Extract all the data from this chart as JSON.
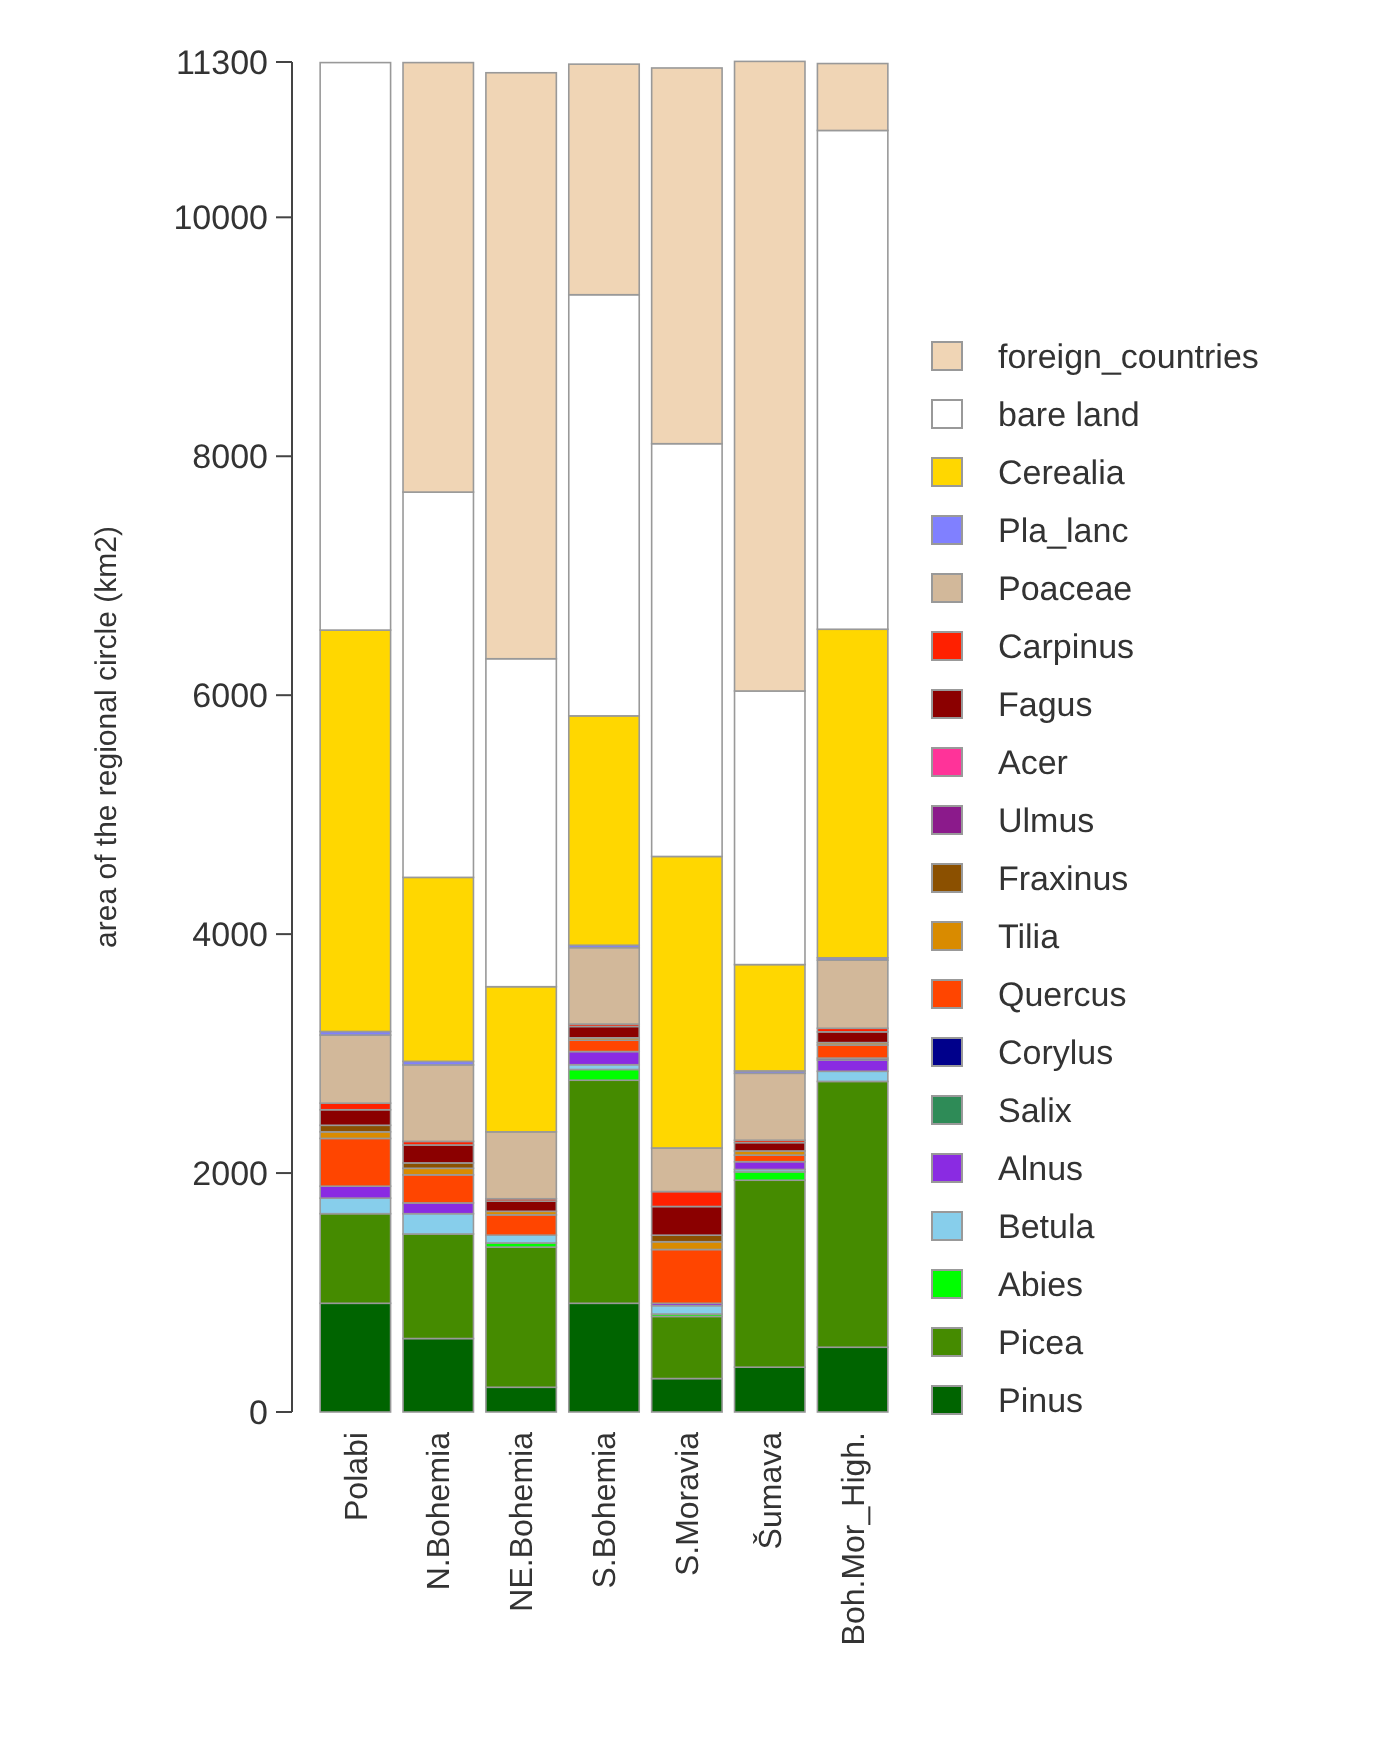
{
  "chart_data": {
    "type": "bar",
    "stacked": true,
    "ylabel": "area of the regional circle (km2)",
    "categories": [
      "Polabi",
      "N.Bohemia",
      "NE.Bohemia",
      "S.Bohemia",
      "S.Moravia",
      "Šumava",
      "Boh.Mor_High."
    ],
    "ylim": [
      0,
      11300
    ],
    "yticks": [
      0,
      2000,
      4000,
      6000,
      8000,
      10000,
      11300
    ],
    "grid": false,
    "legend": "right",
    "series": [
      {
        "name": "Pinus",
        "color": "#006400",
        "values": [
          910,
          615,
          207,
          910,
          280,
          375,
          542
        ]
      },
      {
        "name": "Picea",
        "color": "#458b00",
        "values": [
          750,
          875,
          1173,
          1867,
          520,
          1565,
          2225
        ]
      },
      {
        "name": "Abies",
        "color": "#00ff00",
        "values": [
          0,
          0,
          35,
          90,
          20,
          70,
          0
        ]
      },
      {
        "name": "Betula",
        "color": "#87ceeb",
        "values": [
          130,
          170,
          65,
          40,
          70,
          20,
          85
        ]
      },
      {
        "name": "Alnus",
        "color": "#8a2be2",
        "values": [
          100,
          90,
          0,
          110,
          20,
          65,
          95
        ]
      },
      {
        "name": "Salix",
        "color": "#2e8b57",
        "values": [
          0,
          0,
          0,
          0,
          0,
          0,
          0
        ]
      },
      {
        "name": "Corylus",
        "color": "#00008b",
        "values": [
          0,
          0,
          0,
          0,
          0,
          0,
          15
        ]
      },
      {
        "name": "Quercus",
        "color": "#ff4500",
        "values": [
          400,
          235,
          170,
          95,
          450,
          55,
          110
        ]
      },
      {
        "name": "Tilia",
        "color": "#d98b00",
        "values": [
          55,
          55,
          30,
          20,
          65,
          35,
          20
        ]
      },
      {
        "name": "Fraxinus",
        "color": "#8b5000",
        "values": [
          55,
          45,
          0,
          0,
          55,
          0,
          0
        ]
      },
      {
        "name": "Ulmus",
        "color": "#8b1a8b",
        "values": [
          0,
          0,
          0,
          0,
          0,
          0,
          0
        ]
      },
      {
        "name": "Acer",
        "color": "#ff3399",
        "values": [
          0,
          0,
          0,
          0,
          0,
          0,
          0
        ]
      },
      {
        "name": "Fagus",
        "color": "#8b0000",
        "values": [
          130,
          150,
          85,
          95,
          240,
          70,
          90
        ]
      },
      {
        "name": "Carpinus",
        "color": "#ff2000",
        "values": [
          55,
          30,
          20,
          20,
          125,
          20,
          30
        ]
      },
      {
        "name": "Poaceae",
        "color": "#d2b89a",
        "values": [
          570,
          640,
          560,
          640,
          365,
          560,
          570
        ]
      },
      {
        "name": "Pla_lanc",
        "color": "#8080ff",
        "values": [
          30,
          30,
          null,
          20,
          null,
          20,
          20
        ]
      },
      {
        "name": "Cerealia",
        "color": "#ffd700",
        "values": [
          3360,
          1540,
          1215,
          1920,
          2440,
          890,
          2750
        ]
      },
      {
        "name": "bare land",
        "color": "#ffffff",
        "values": [
          4750,
          3225,
          2745,
          3525,
          3455,
          2290,
          4175
        ]
      },
      {
        "name": "foreign_countries",
        "color": "#f0d5b5",
        "values": [
          0,
          3595,
          4905,
          1930,
          3145,
          5270,
          560
        ]
      }
    ]
  }
}
